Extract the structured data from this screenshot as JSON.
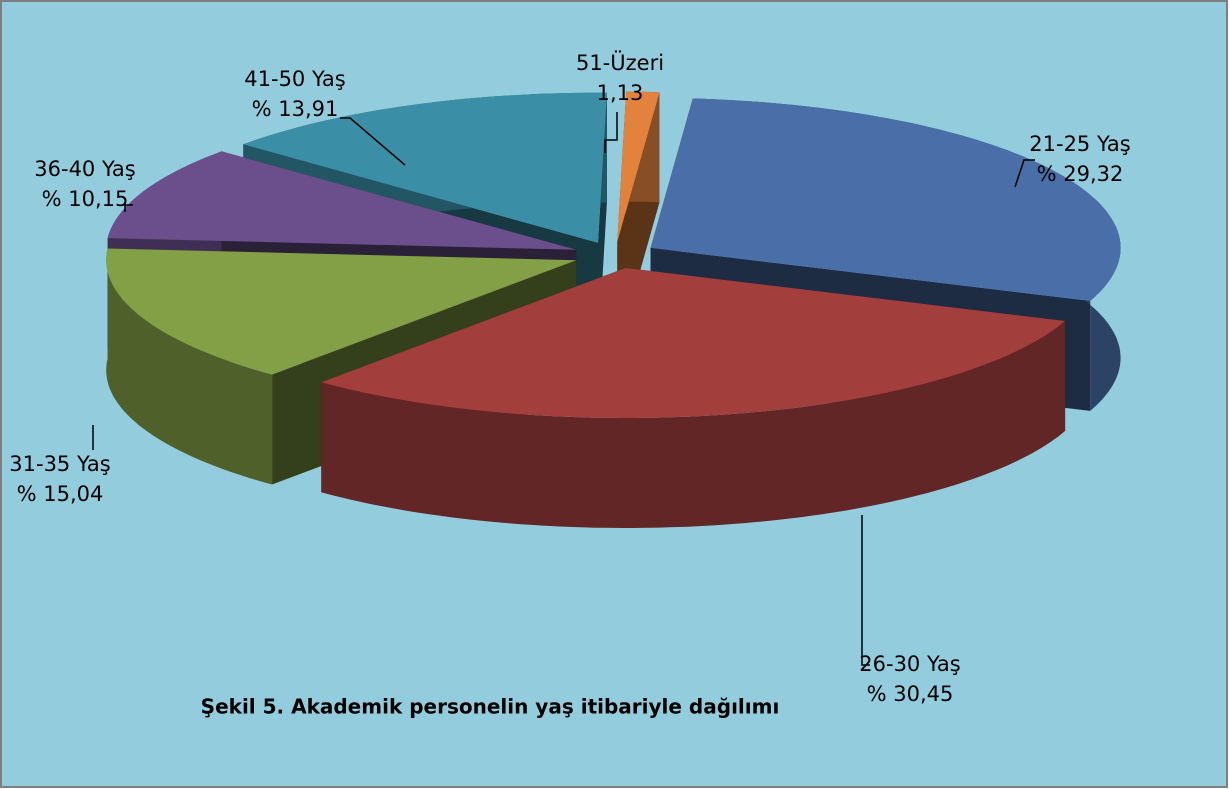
{
  "chart_data": {
    "type": "pie3d",
    "title": "Şekil 5. Akademik personelin yaş itibariyle dağılımı",
    "categories": [
      "21-25 Yaş",
      "26-30 Yaş",
      "31-35 Yaş",
      "36-40 Yaş",
      "41-50 Yaş",
      "51-Üzeri"
    ],
    "values": [
      29.32,
      30.45,
      15.04,
      10.15,
      13.91,
      1.13
    ],
    "value_labels": [
      "% 29,32",
      "% 30,45",
      "% 15,04",
      "% 10,15",
      "% 13,91",
      "1,13"
    ],
    "colors": [
      "#4a6fa8",
      "#a23f3d",
      "#83a046",
      "#6a4f8c",
      "#3a8fa6",
      "#e3823d"
    ]
  }
}
